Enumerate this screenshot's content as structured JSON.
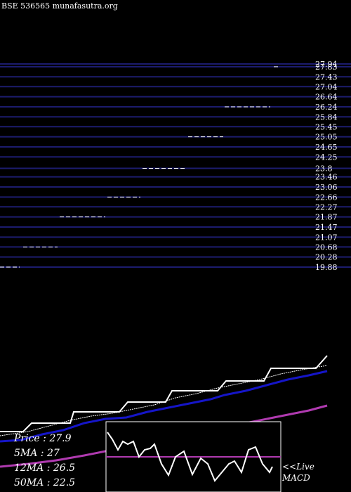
{
  "header": {
    "source": "BSE 536565 munafasutra.org"
  },
  "colors": {
    "background": "#000000",
    "level_line": "#1c1c6e",
    "text": "#ffffff",
    "price": "#ffffff",
    "ma5": "#ffffff",
    "ma12": "#1515c8",
    "ma50": "#b03ab0",
    "macd": "#ffffff",
    "macd_signal": "#b03ab0"
  },
  "stats": {
    "price": "Price   : 27.9",
    "ma5": "5MA : 27",
    "ma12": "12MA : 26.5",
    "ma50": "50MA : 22.5"
  },
  "live_macd": {
    "line1": "<<Live",
    "line2": "MACD"
  },
  "chart_data": {
    "type": "line",
    "ylim": [
      19.88,
      27.94
    ],
    "tick_labels": [
      "27.94",
      "27.83",
      "27.43",
      "27.04",
      "26.64",
      "26.24",
      "25.84",
      "25.45",
      "25.05",
      "24.65",
      "24.25",
      "23.8",
      "23.46",
      "23.06",
      "22.66",
      "22.27",
      "21.87",
      "21.47",
      "21.07",
      "20.68",
      "20.28",
      "19.88"
    ],
    "levels": [
      27.94,
      27.83,
      27.43,
      27.04,
      26.64,
      26.24,
      25.84,
      25.45,
      25.05,
      24.65,
      24.25,
      23.8,
      23.46,
      23.06,
      22.66,
      22.27,
      21.87,
      21.47,
      21.07,
      20.68,
      20.28,
      19.88
    ],
    "price_segments": [
      {
        "from": 0,
        "to": 28,
        "value": 19.88
      },
      {
        "from": 33,
        "to": 82,
        "value": 20.68
      },
      {
        "from": 85,
        "to": 150,
        "value": 21.87
      },
      {
        "from": 153,
        "to": 200,
        "value": 22.66
      },
      {
        "from": 203,
        "to": 265,
        "value": 23.8
      },
      {
        "from": 268,
        "to": 318,
        "value": 25.05
      },
      {
        "from": 320,
        "to": 385,
        "value": 26.24
      },
      {
        "from": 390,
        "to": 398,
        "value": 27.83
      }
    ]
  }
}
